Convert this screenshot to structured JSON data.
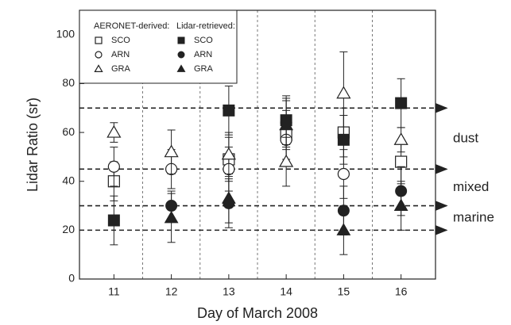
{
  "chart_data": {
    "type": "scatter",
    "x_label": "Day of March 2008",
    "y_label": "Lidar Ratio (sr)",
    "x": [
      11,
      12,
      13,
      14,
      15,
      16
    ],
    "xlim": [
      10.4,
      16.6
    ],
    "xticks": [
      11,
      12,
      13,
      14,
      15,
      16
    ],
    "ylim": [
      0,
      110
    ],
    "yticks": [
      0,
      20,
      40,
      60,
      80,
      100
    ],
    "legend_titles": [
      "AERONET-derived:",
      "Lidar-retrieved:"
    ],
    "series": [
      {
        "name": "SCO",
        "color": "#222222",
        "marker": "square-open",
        "values": [
          40,
          null,
          49,
          59,
          60,
          48
        ],
        "errors": [
          8,
          null,
          9,
          10,
          10,
          9
        ]
      },
      {
        "name": "ARN",
        "color": "#222222",
        "marker": "circle-open",
        "values": [
          46,
          45,
          45,
          57,
          43,
          null
        ],
        "errors": [
          8,
          8,
          9,
          10,
          10,
          null
        ]
      },
      {
        "name": "GRA",
        "color": "#222222",
        "marker": "triangle-open",
        "values": [
          60,
          52,
          51,
          48,
          76,
          57
        ],
        "errors": [
          4,
          9,
          9,
          10,
          17,
          5
        ]
      },
      {
        "name": "SCO",
        "color": "#222222",
        "marker": "square",
        "values": [
          24,
          null,
          69,
          65,
          57,
          72
        ],
        "errors": [
          10,
          null,
          10,
          10,
          10,
          10
        ]
      },
      {
        "name": "ARN",
        "color": "#222222",
        "marker": "circle",
        "values": [
          null,
          30,
          31,
          64,
          28,
          36
        ],
        "errors": [
          null,
          6,
          10,
          10,
          10,
          10
        ]
      },
      {
        "name": "GRA",
        "color": "#222222",
        "marker": "triangle",
        "values": [
          null,
          25,
          33,
          63,
          20,
          30
        ],
        "errors": [
          null,
          10,
          10,
          10,
          10,
          10
        ]
      }
    ],
    "reference_lines": [
      70,
      45,
      30,
      20
    ],
    "annotations": [
      "dust",
      "mixed",
      "marine"
    ]
  }
}
